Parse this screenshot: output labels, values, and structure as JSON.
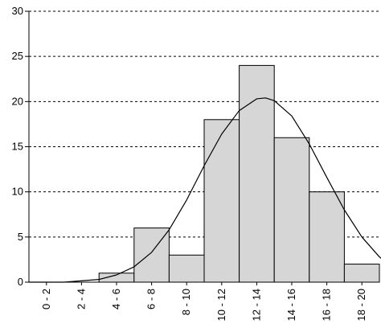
{
  "chart_data": {
    "type": "bar",
    "title": "",
    "xlabel": "",
    "ylabel": "",
    "categories": [
      "0 - 2",
      "2 - 4",
      "4 - 6",
      "6 - 8",
      "8 - 10",
      "10 - 12",
      "12 - 14",
      "14 - 16",
      "16 - 18",
      "18 - 20"
    ],
    "values": [
      0,
      0,
      1,
      6,
      3,
      18,
      24,
      16,
      10,
      2
    ],
    "ylim": [
      0,
      30
    ],
    "yticks": [
      "0",
      "5",
      "10",
      "15",
      "20",
      "25",
      "30"
    ],
    "grid": "horizontal dashed",
    "legend": "none",
    "overlay": {
      "type": "line",
      "x": [
        0,
        2,
        4,
        5,
        6,
        7,
        8,
        9,
        10,
        11,
        12,
        13,
        13.5,
        14,
        15,
        16,
        17,
        18,
        19,
        20,
        20.5
      ],
      "y": [
        0,
        0,
        0.3,
        0.8,
        1.7,
        3.3,
        5.8,
        9.1,
        12.9,
        16.4,
        19.0,
        20.3,
        20.4,
        20.1,
        18.4,
        15.3,
        11.6,
        8.0,
        5.0,
        2.8,
        2.0
      ]
    },
    "colors": {
      "bar_fill": "#d6d6d6",
      "bar_stroke": "#000000",
      "grid": "#000000",
      "curve": "#000000"
    }
  }
}
